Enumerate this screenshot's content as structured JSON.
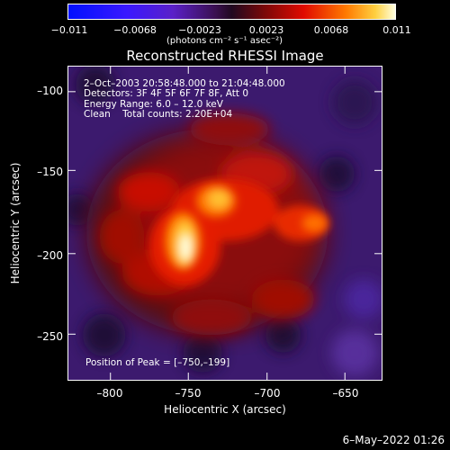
{
  "title": "Reconstructed RHESSI Image",
  "colorbar": {
    "ticks": [
      "−0.011",
      "−0.0068",
      "−0.0023",
      "0.0023",
      "0.0068",
      "0.011"
    ],
    "unit": "(photons cm⁻² s⁻¹ asec⁻²)"
  },
  "annotations": {
    "time": "2–Oct–2003 20:58:48.000 to 21:04:48.000",
    "detectors": "Detectors: 3F 4F 5F 6F 7F 8F, Att 0",
    "energy": "Energy Range: 6.0 – 12.0 keV",
    "clean": "Clean    Total counts: 2.20E+04",
    "peak": "Position of Peak = [–750,–199]"
  },
  "axes": {
    "xlabel": "Heliocentric X (arcsec)",
    "ylabel": "Heliocentric Y (arcsec)",
    "xticks": [
      "–800",
      "–750",
      "–700",
      "–650"
    ],
    "yticks": [
      "–100",
      "–150",
      "–200",
      "–250"
    ]
  },
  "footer": "6–May–2022 01:26",
  "colors": {
    "background": "#000000",
    "negative_low": "#1a10ff",
    "zero": "#3a1a6a",
    "positive_mid": "#e01000",
    "positive_high": "#ffffff"
  }
}
